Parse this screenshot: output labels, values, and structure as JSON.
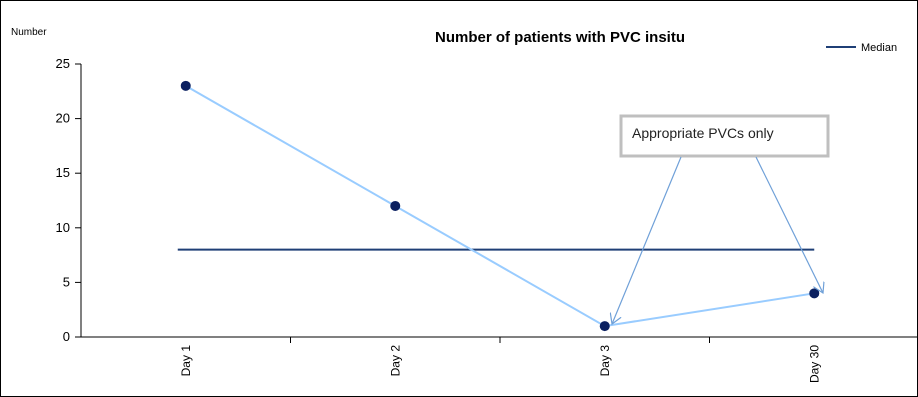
{
  "chart_data": {
    "type": "line",
    "title": "Number of patients with PVC insitu",
    "ylabel": "Number",
    "xlabel": "",
    "categories": [
      "Day 1",
      "Day 2",
      "Day 3",
      "Day 30"
    ],
    "ylim": [
      0,
      25
    ],
    "yticks": [
      0,
      5,
      10,
      15,
      20,
      25
    ],
    "grid": false,
    "legend_position": "top-right",
    "series": [
      {
        "values": [
          23,
          12,
          1,
          4
        ],
        "color": "#99ccff",
        "marker_color": "#0b2060",
        "style": "line-with-markers"
      },
      {
        "name": "Median",
        "values": [
          8,
          8,
          8,
          8
        ],
        "color": "#1f3f76",
        "style": "line"
      }
    ],
    "annotations": [
      {
        "text": "Appropriate PVCs only",
        "points_to": [
          "Day 3",
          "Day 30"
        ]
      }
    ]
  }
}
